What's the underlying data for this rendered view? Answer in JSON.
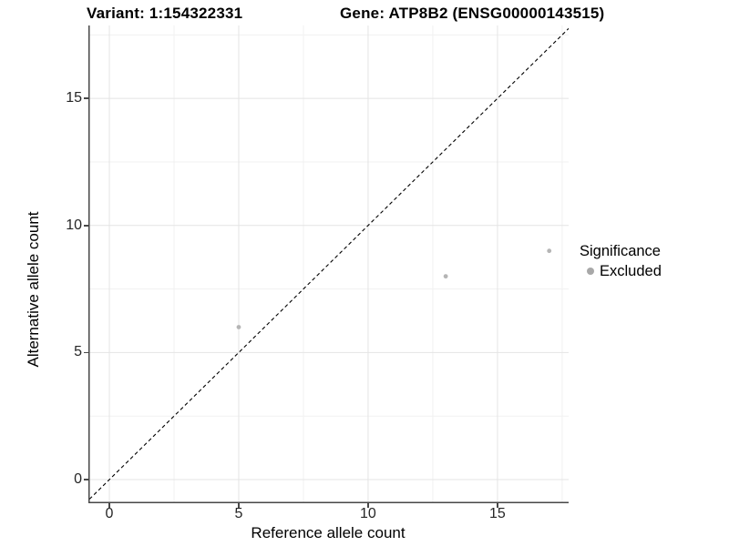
{
  "chart_data": {
    "type": "scatter",
    "title_left": "Variant: 1:154322331",
    "title_right": "Gene: ATP8B2 (ENSG00000143515)",
    "xlabel": "Reference allele count",
    "ylabel": "Alternative allele count",
    "xlim": [
      -0.81,
      17.75
    ],
    "ylim": [
      -0.93,
      17.87
    ],
    "x_ticks": [
      0,
      5,
      10,
      15
    ],
    "y_ticks": [
      0,
      5,
      10,
      15
    ],
    "x_minor_ticks": [
      2.5,
      7.5,
      12.5,
      17.5
    ],
    "y_minor_ticks": [
      2.5,
      7.5,
      12.5,
      17.5
    ],
    "grid": "major+minor",
    "series": [
      {
        "name": "Excluded",
        "color": "#b5b5b5",
        "points": [
          [
            5,
            6
          ],
          [
            13,
            8
          ],
          [
            17,
            9
          ]
        ]
      }
    ],
    "reference_line": {
      "type": "identity",
      "slope": 1,
      "intercept": 0,
      "style": "dashed",
      "color": "#000000"
    },
    "legend": {
      "title": "Significance",
      "position": "right",
      "items": [
        {
          "label": "Excluded",
          "color": "#a8a8a8"
        }
      ]
    }
  },
  "colors": {
    "background": "#ffffff",
    "grid_major": "#e4e4e4",
    "grid_minor": "#f1f1f1",
    "axis_line": "#474747",
    "tick_text": "#262626",
    "title_text": "#000000"
  }
}
